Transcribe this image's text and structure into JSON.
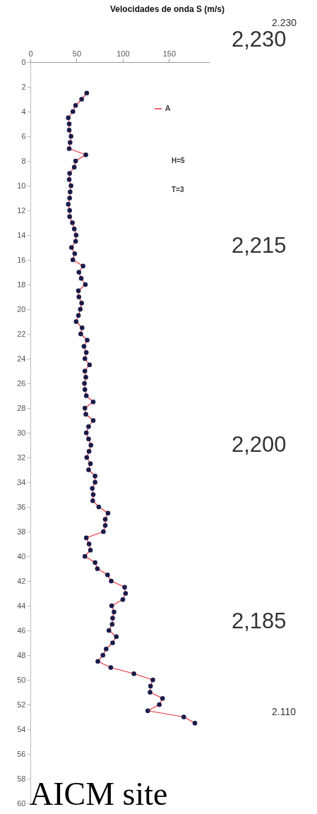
{
  "chart_data": {
    "type": "line",
    "title": "Velocidades de onda S (m/s)",
    "xlim": [
      0,
      194
    ],
    "xticks": [
      0,
      50,
      100,
      150
    ],
    "ylim": [
      60,
      0
    ],
    "yticks": [
      0,
      2,
      4,
      6,
      8,
      10,
      12,
      14,
      16,
      18,
      20,
      22,
      24,
      26,
      28,
      30,
      32,
      34,
      36,
      38,
      40,
      42,
      44,
      46,
      48,
      50,
      52,
      54,
      56,
      58,
      60
    ],
    "marker": "circle",
    "grid": false,
    "legend": "top right",
    "annotations": [
      "2.230",
      "2,230",
      "H=5",
      "T=3",
      "2,215",
      "2,200",
      "2,185",
      "2.110",
      "AICM site"
    ],
    "series": [
      {
        "name": "A",
        "color": "#e8303a",
        "x": [
          61,
          55.5,
          49,
          46,
          41,
          42,
          42,
          44,
          43,
          42,
          60,
          49,
          47.5,
          42.5,
          42,
          44,
          43,
          42.5,
          41,
          42.5,
          42.5,
          45.5,
          47.5,
          49.5,
          49,
          44.5,
          48,
          46,
          57,
          52.5,
          55,
          59.5,
          52,
          52.5,
          55.5,
          54,
          52,
          49.5,
          56,
          54.5,
          61.5,
          58,
          60.5,
          59,
          64,
          59,
          60,
          58.5,
          59,
          60.5,
          68,
          59,
          60,
          68,
          63,
          60.5,
          63,
          65.5,
          63.5,
          61,
          65,
          63,
          70,
          70,
          67,
          68,
          67.5,
          74,
          84,
          81,
          81,
          79,
          60.5,
          63.5,
          65,
          59,
          70,
          72.5,
          83.5,
          87.5,
          102,
          103,
          100,
          88,
          90.5,
          89,
          88.5,
          85,
          93,
          89,
          82,
          78.5,
          73,
          87,
          112,
          132.5,
          130,
          129.5,
          143,
          139.5,
          127,
          166,
          178
        ],
        "values": [
          2.5,
          3,
          3.5,
          4,
          4.5,
          5,
          5.5,
          6,
          6.5,
          7,
          7.5,
          8,
          8.5,
          9,
          9.5,
          10,
          10.5,
          11,
          11.5,
          12,
          12.5,
          13,
          13.5,
          14,
          14.5,
          15,
          15.5,
          16,
          16.5,
          17,
          17.5,
          18,
          18.5,
          19,
          19.5,
          20,
          20.5,
          21,
          21.5,
          22,
          22.5,
          23,
          23.5,
          24,
          24.5,
          25,
          25.5,
          26,
          26.5,
          27,
          27.5,
          28,
          28.5,
          29,
          29.5,
          30,
          30.5,
          31,
          31.5,
          32,
          32.5,
          33,
          33.5,
          34,
          34.5,
          35,
          35.5,
          36,
          36.5,
          37,
          37.5,
          38,
          38.5,
          39,
          39.5,
          40,
          40.5,
          41,
          41.5,
          42,
          42.5,
          43,
          43.5,
          44,
          44.5,
          45,
          45.5,
          46,
          46.5,
          47,
          47.5,
          48,
          48.5,
          49,
          49.5,
          50,
          50.5,
          51,
          51.5,
          52,
          52.5,
          53,
          53.5
        ]
      }
    ]
  }
}
